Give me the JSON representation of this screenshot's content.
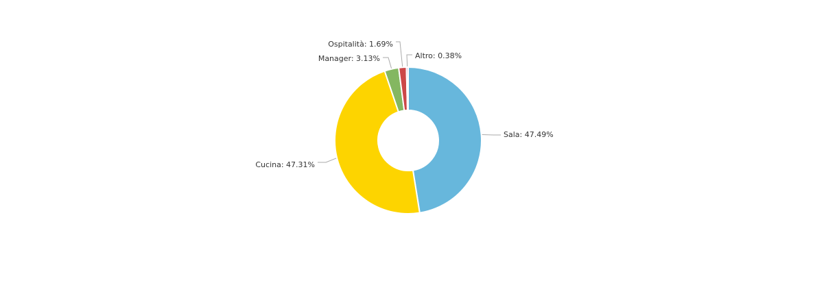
{
  "chart_data": {
    "type": "pie",
    "variant": "donut",
    "title": "",
    "slices": [
      {
        "name": "Sala",
        "value": 47.49,
        "label": "Sala: 47.49%",
        "color": "#67b7dc"
      },
      {
        "name": "Cucina",
        "value": 47.31,
        "label": "Cucina: 47.31%",
        "color": "#fdd400"
      },
      {
        "name": "Manager",
        "value": 3.13,
        "label": "Manager: 3.13%",
        "color": "#84b761"
      },
      {
        "name": "Ospitalità",
        "value": 1.69,
        "label": "Ospitalità: 1.69%",
        "color": "#cc4748"
      },
      {
        "name": "Altro",
        "value": 0.38,
        "label": "Altro: 0.38%",
        "color": "#cd82ad"
      }
    ],
    "legend": "none"
  }
}
